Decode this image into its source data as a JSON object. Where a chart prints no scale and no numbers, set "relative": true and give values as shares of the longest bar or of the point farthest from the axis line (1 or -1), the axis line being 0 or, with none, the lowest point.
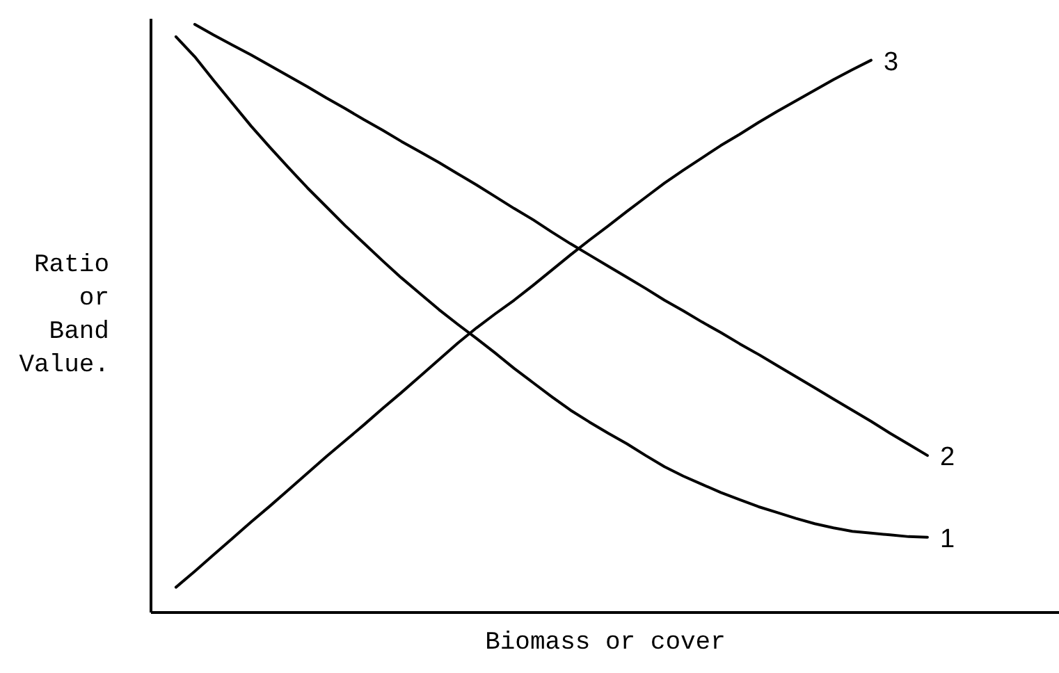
{
  "chart_data": {
    "type": "line",
    "xlabel": "Biomass or cover",
    "ylabel": "Ratio or Band Value.",
    "relative": true,
    "categories": [
      null,
      null,
      null,
      null,
      null,
      null,
      null,
      null,
      null,
      null,
      null,
      null,
      null,
      null,
      null,
      null,
      null,
      null,
      null,
      null,
      null,
      null,
      null,
      null,
      null,
      null,
      null,
      null,
      null,
      null,
      null,
      null,
      null,
      null,
      null,
      null,
      null,
      null,
      null,
      null,
      null
    ],
    "series": [
      {
        "name": "1",
        "color": "#000000",
        "values": [
          0.979,
          0.945,
          0.905,
          0.866,
          0.827,
          0.791,
          0.756,
          0.722,
          0.69,
          0.658,
          0.628,
          0.598,
          0.569,
          0.542,
          0.515,
          0.49,
          0.466,
          0.441,
          0.415,
          0.391,
          0.367,
          0.344,
          0.324,
          0.305,
          0.287,
          0.267,
          0.248,
          0.232,
          0.218,
          0.204,
          0.192,
          0.18,
          0.17,
          0.16,
          0.151,
          0.144,
          0.138,
          0.135,
          0.132,
          0.129,
          0.128
        ]
      },
      {
        "name": "2",
        "color": "#000000",
        "values": [
          null,
          1.0,
          0.982,
          0.965,
          0.948,
          0.93,
          0.912,
          0.894,
          0.875,
          0.857,
          0.838,
          0.82,
          0.801,
          0.783,
          0.765,
          0.746,
          0.727,
          0.707,
          0.687,
          0.668,
          0.647,
          0.627,
          0.608,
          0.589,
          0.57,
          0.551,
          0.531,
          0.513,
          0.494,
          0.476,
          0.457,
          0.439,
          0.42,
          0.401,
          0.382,
          0.363,
          0.344,
          0.325,
          0.305,
          0.286,
          0.267
        ]
      },
      {
        "name": "3",
        "color": "#000000",
        "values": [
          0.043,
          0.07,
          0.098,
          0.126,
          0.154,
          0.181,
          0.209,
          0.237,
          0.265,
          0.292,
          0.319,
          0.347,
          0.374,
          0.402,
          0.43,
          0.458,
          0.484,
          0.508,
          0.531,
          0.556,
          0.582,
          0.608,
          0.633,
          0.657,
          0.682,
          0.706,
          0.73,
          0.752,
          0.773,
          0.794,
          0.813,
          0.833,
          0.852,
          0.87,
          0.888,
          0.906,
          0.923,
          0.939,
          null,
          null,
          null
        ]
      }
    ]
  }
}
